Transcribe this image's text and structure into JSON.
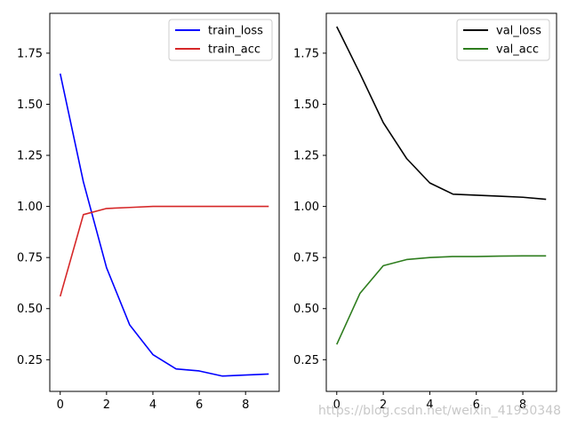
{
  "chart_data": [
    {
      "type": "line",
      "title": "",
      "xlabel": "",
      "ylabel": "",
      "xlim": [
        -0.45,
        9.45
      ],
      "ylim": [
        0.095,
        1.945
      ],
      "xticks": [
        "0",
        "2",
        "4",
        "6",
        "8"
      ],
      "yticks": [
        "0.25",
        "0.50",
        "0.75",
        "1.00",
        "1.25",
        "1.50",
        "1.75"
      ],
      "grid": false,
      "legend_position": "top-right",
      "x": [
        0,
        1,
        2,
        3,
        4,
        5,
        6,
        7,
        8,
        9
      ],
      "series": [
        {
          "name": "train_loss",
          "color": "#0000ff",
          "values": [
            1.65,
            1.12,
            0.7,
            0.42,
            0.275,
            0.205,
            0.195,
            0.17,
            0.175,
            0.18
          ]
        },
        {
          "name": "train_acc",
          "color": "#d62728",
          "values": [
            0.56,
            0.96,
            0.99,
            0.995,
            1.0,
            1.0,
            1.0,
            1.0,
            1.0,
            1.0
          ]
        }
      ]
    },
    {
      "type": "line",
      "title": "",
      "xlabel": "",
      "ylabel": "",
      "xlim": [
        -0.45,
        9.45
      ],
      "ylim": [
        0.095,
        1.945
      ],
      "xticks": [
        "0",
        "2",
        "4",
        "6",
        "8"
      ],
      "yticks": [
        "0.25",
        "0.50",
        "0.75",
        "1.00",
        "1.25",
        "1.50",
        "1.75"
      ],
      "grid": false,
      "legend_position": "top-right",
      "x": [
        0,
        1,
        2,
        3,
        4,
        5,
        6,
        7,
        8,
        9
      ],
      "series": [
        {
          "name": "val_loss",
          "color": "#000000",
          "values": [
            1.88,
            1.65,
            1.41,
            1.235,
            1.115,
            1.06,
            1.055,
            1.05,
            1.045,
            1.035
          ]
        },
        {
          "name": "val_acc",
          "color": "#2e7d1e",
          "values": [
            0.325,
            0.575,
            0.71,
            0.74,
            0.75,
            0.755,
            0.755,
            0.757,
            0.758,
            0.758
          ]
        }
      ]
    }
  ],
  "watermark": "https://blog.csdn.net/weixin_41950348"
}
